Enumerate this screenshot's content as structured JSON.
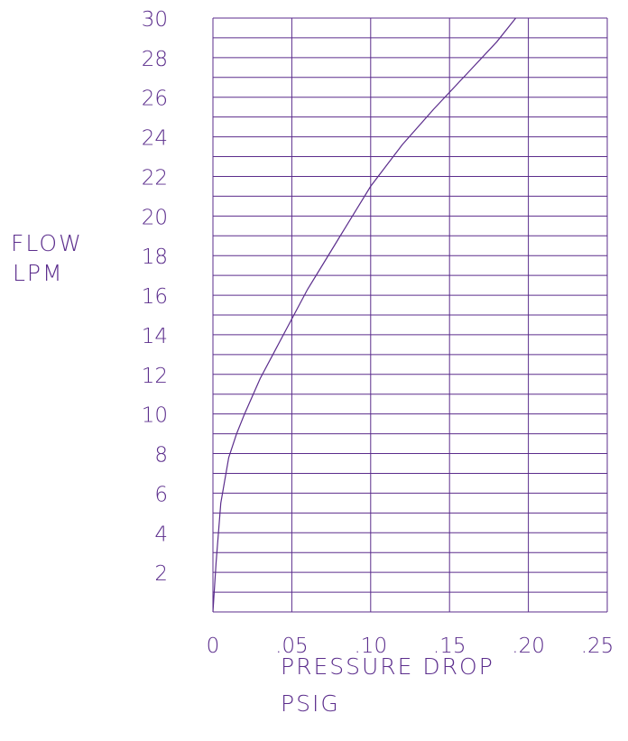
{
  "chart_data": {
    "type": "line",
    "title": "",
    "ylabel_lines": [
      "FLOW",
      "LPM"
    ],
    "xlabel_lines": [
      "PRESSURE DROP",
      "PSIG"
    ],
    "xlim": [
      0,
      0.25
    ],
    "ylim": [
      0,
      30
    ],
    "x_ticks": [
      0,
      0.05,
      0.1,
      0.15,
      0.2,
      0.25
    ],
    "x_tick_labels": [
      "0",
      ".05",
      ".10",
      ".15",
      ".20",
      ".25"
    ],
    "y_ticks": [
      2,
      4,
      6,
      8,
      10,
      12,
      14,
      16,
      18,
      20,
      22,
      24,
      26,
      28,
      30
    ],
    "y_tick_labels": [
      "2",
      "4",
      "6",
      "8",
      "10",
      "12",
      "14",
      "16",
      "18",
      "20",
      "22",
      "24",
      "26",
      "28",
      "30"
    ],
    "grid": true,
    "grid_y_step": 1,
    "grid_x_step": 0.05,
    "color": "#5b2d8c",
    "series": [
      {
        "x": [
          0,
          0.002,
          0.005,
          0.01,
          0.015,
          0.02,
          0.03,
          0.04,
          0.05,
          0.06,
          0.07,
          0.08,
          0.09,
          0.1,
          0.12,
          0.14,
          0.16,
          0.18,
          0.192
        ],
        "y": [
          0,
          2.5,
          5.5,
          7.8,
          9.0,
          10.0,
          11.8,
          13.3,
          14.8,
          16.3,
          17.6,
          18.9,
          20.2,
          21.5,
          23.6,
          25.4,
          27.1,
          28.8,
          30
        ]
      }
    ]
  }
}
